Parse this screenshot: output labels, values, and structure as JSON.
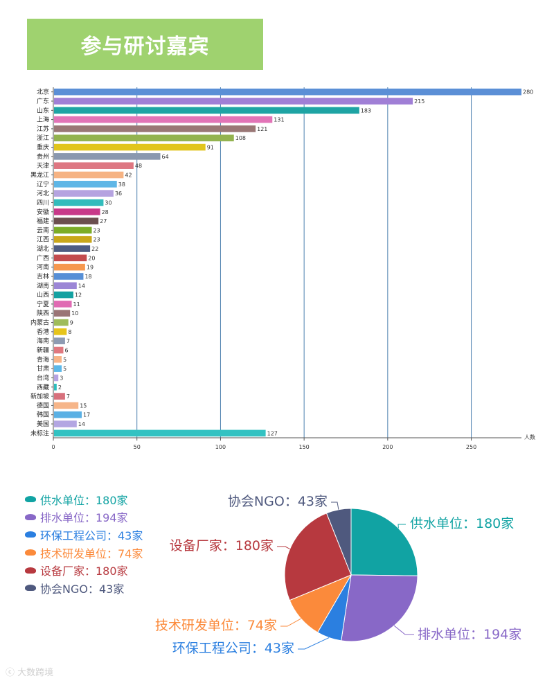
{
  "title": "参与研讨嘉宾",
  "chart_data": [
    {
      "type": "bar",
      "orientation": "horizontal",
      "categories": [
        "北京",
        "广东",
        "山东",
        "上海",
        "江苏",
        "浙江",
        "重庆",
        "贵州",
        "天津",
        "黑龙江",
        "辽宁",
        "河北",
        "四川",
        "安徽",
        "福建",
        "云南",
        "江西",
        "湖北",
        "广西",
        "河南",
        "吉林",
        "湖南",
        "山西",
        "宁夏",
        "陕西",
        "内蒙古",
        "香港",
        "海南",
        "新疆",
        "青海",
        "甘肃",
        "台湾",
        "西藏",
        "新加坡",
        "德国",
        "韩国",
        "美国",
        "未标注"
      ],
      "values": [
        280,
        215,
        183,
        131,
        121,
        108,
        91,
        64,
        48,
        42,
        38,
        36,
        30,
        28,
        27,
        23,
        23,
        22,
        20,
        19,
        18,
        14,
        12,
        11,
        10,
        9,
        8,
        7,
        6,
        5,
        5,
        3,
        2,
        7,
        15,
        17,
        14,
        127
      ],
      "colors": [
        "#5b8fd6",
        "#a07fd6",
        "#1ea4a4",
        "#e274b7",
        "#9a7776",
        "#93b34f",
        "#e1c51c",
        "#8a98af",
        "#de7782",
        "#f6b383",
        "#5eb6e6",
        "#b5a3e0",
        "#33bcbc",
        "#c83989",
        "#6b4f4f",
        "#7cac28",
        "#c9a71a",
        "#4e5c82",
        "#c34b4e",
        "#f6984f",
        "#578fd6",
        "#9c86d6",
        "#14a1a1",
        "#e06bb3",
        "#9a7476",
        "#9fbc5a",
        "#e6c41b",
        "#8e9bb2",
        "#e0787f",
        "#f8b487",
        "#5cb8e8",
        "#b5a3e2",
        "#2dbdbd",
        "#d7717c",
        "#f6b589",
        "#5ab0e4",
        "#b3a6e2",
        "#33c2c2"
      ],
      "xlabel": "人数",
      "xlim": [
        0,
        280
      ],
      "xticks": [
        0,
        50,
        100,
        150,
        200,
        250
      ]
    },
    {
      "type": "pie",
      "labels": [
        "供水单位",
        "排水单位",
        "环保工程公司",
        "技术研发单位",
        "设备厂家",
        "协会NGO"
      ],
      "values": [
        180,
        194,
        43,
        74,
        180,
        43
      ],
      "unit": "家",
      "slice_labels": [
        "供水单位：180家",
        "排水单位：194家",
        "环保工程公司：43家",
        "技术研发单位：74家",
        "设备厂家：180家",
        "协会NGO：43家"
      ],
      "colors": [
        "#11a3a3",
        "#8868c7",
        "#2b7fe0",
        "#fb8a3b",
        "#b7393f",
        "#4f597e"
      ],
      "legend_position": "left"
    }
  ],
  "legend": [
    {
      "label": "供水单位：180家",
      "color": "#11a3a3",
      "icon": "fan-icon"
    },
    {
      "label": "排水单位：194家",
      "color": "#8868c7",
      "icon": "fan-icon"
    },
    {
      "label": "环保工程公司：43家",
      "color": "#2b7fe0",
      "icon": "fan-icon"
    },
    {
      "label": "技术研发单位：74家",
      "color": "#fb8a3b",
      "icon": "fan-icon"
    },
    {
      "label": "设备厂家：180家",
      "color": "#b7393f",
      "icon": "fan-icon"
    },
    {
      "label": "协会NGO：43家",
      "color": "#4f597e",
      "icon": "fan-icon"
    }
  ],
  "watermark": "大数跨境"
}
